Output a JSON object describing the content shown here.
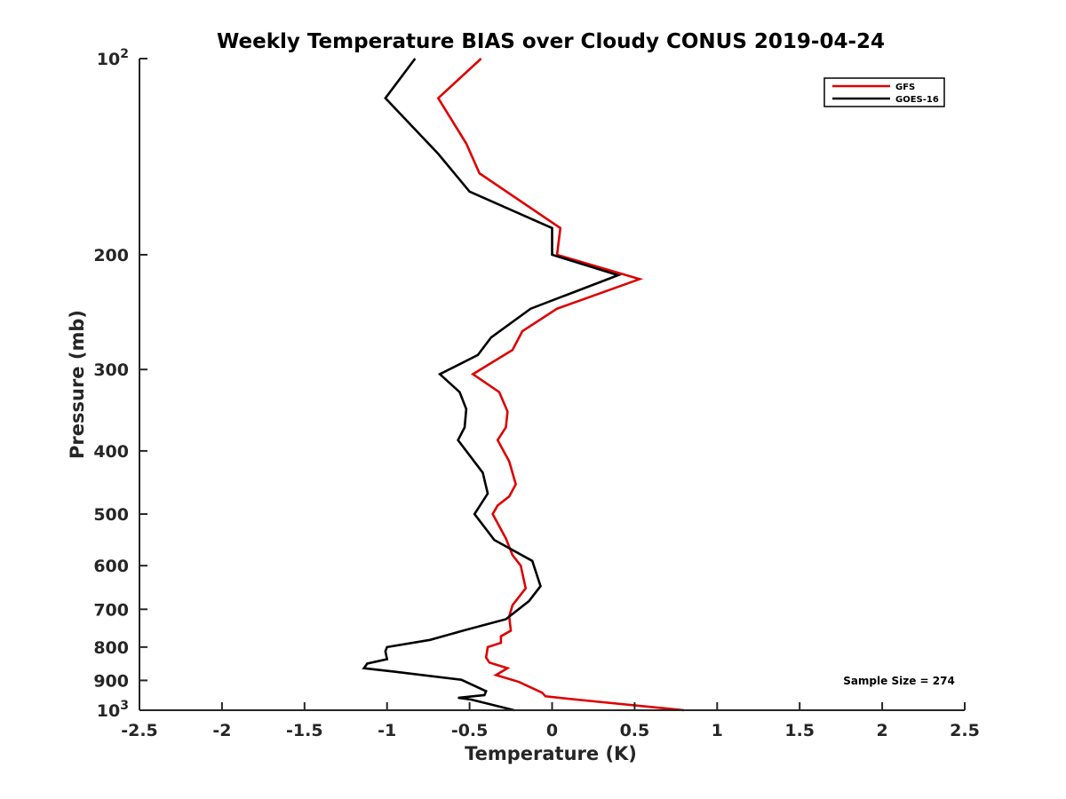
{
  "chart_data": {
    "type": "line",
    "title": "Weekly Temperature BIAS over Cloudy CONUS 2019-04-24",
    "xlabel": "Temperature (K)",
    "ylabel": "Pressure (mb)",
    "xlim": [
      -2.5,
      2.5
    ],
    "ylim": [
      1000,
      100
    ],
    "yscale": "log",
    "grid": false,
    "legend_position": "top-right",
    "x_ticks": [
      -2.5,
      -2,
      -1.5,
      -1,
      -0.5,
      0,
      0.5,
      1,
      1.5,
      2,
      2.5
    ],
    "x_tick_labels": [
      "-2.5",
      "-2",
      "-1.5",
      "-1",
      "-0.5",
      "0",
      "0.5",
      "1",
      "1.5",
      "2",
      "2.5"
    ],
    "y_ticks": [
      {
        "value": 100,
        "label": "10",
        "sup": "2"
      },
      {
        "value": 200,
        "label": "200",
        "sup": ""
      },
      {
        "value": 300,
        "label": "300",
        "sup": ""
      },
      {
        "value": 400,
        "label": "400",
        "sup": ""
      },
      {
        "value": 500,
        "label": "500",
        "sup": ""
      },
      {
        "value": 600,
        "label": "600",
        "sup": ""
      },
      {
        "value": 700,
        "label": "700",
        "sup": ""
      },
      {
        "value": 800,
        "label": "800",
        "sup": ""
      },
      {
        "value": 900,
        "label": "900",
        "sup": ""
      },
      {
        "value": 1000,
        "label": "10",
        "sup": "3"
      }
    ],
    "annotation": "Sample Size = 274",
    "series": [
      {
        "name": "GFS",
        "color": "#dd0000",
        "points": [
          [
            -0.43,
            100
          ],
          [
            -0.69,
            115
          ],
          [
            -0.52,
            135
          ],
          [
            -0.44,
            150
          ],
          [
            0.05,
            182
          ],
          [
            0.03,
            200
          ],
          [
            0.53,
            218
          ],
          [
            0.03,
            242
          ],
          [
            -0.18,
            262
          ],
          [
            -0.24,
            280
          ],
          [
            -0.48,
            305
          ],
          [
            -0.32,
            325
          ],
          [
            -0.27,
            348
          ],
          [
            -0.28,
            368
          ],
          [
            -0.33,
            385
          ],
          [
            -0.26,
            415
          ],
          [
            -0.22,
            450
          ],
          [
            -0.26,
            470
          ],
          [
            -0.33,
            485
          ],
          [
            -0.36,
            500
          ],
          [
            -0.28,
            545
          ],
          [
            -0.24,
            578
          ],
          [
            -0.19,
            600
          ],
          [
            -0.16,
            650
          ],
          [
            -0.24,
            690
          ],
          [
            -0.26,
            718
          ],
          [
            -0.25,
            755
          ],
          [
            -0.31,
            770
          ],
          [
            -0.31,
            788
          ],
          [
            -0.39,
            800
          ],
          [
            -0.4,
            830
          ],
          [
            -0.38,
            845
          ],
          [
            -0.27,
            862
          ],
          [
            -0.34,
            883
          ],
          [
            -0.2,
            905
          ],
          [
            -0.06,
            940
          ],
          [
            -0.04,
            952
          ],
          [
            0.18,
            965
          ],
          [
            0.8,
            1000
          ]
        ]
      },
      {
        "name": "GOES-16",
        "color": "#000000",
        "points": [
          [
            -0.83,
            100
          ],
          [
            -1.01,
            115
          ],
          [
            -0.69,
            140
          ],
          [
            -0.5,
            160
          ],
          [
            0.0,
            182
          ],
          [
            0.0,
            200
          ],
          [
            0.4,
            215
          ],
          [
            -0.13,
            242
          ],
          [
            -0.37,
            268
          ],
          [
            -0.45,
            285
          ],
          [
            -0.68,
            305
          ],
          [
            -0.56,
            325
          ],
          [
            -0.52,
            345
          ],
          [
            -0.53,
            368
          ],
          [
            -0.57,
            385
          ],
          [
            -0.42,
            432
          ],
          [
            -0.39,
            465
          ],
          [
            -0.47,
            500
          ],
          [
            -0.35,
            548
          ],
          [
            -0.12,
            590
          ],
          [
            -0.07,
            645
          ],
          [
            -0.14,
            680
          ],
          [
            -0.28,
            725
          ],
          [
            -0.54,
            755
          ],
          [
            -0.74,
            780
          ],
          [
            -1.0,
            800
          ],
          [
            -1.01,
            812
          ],
          [
            -1.0,
            835
          ],
          [
            -1.12,
            848
          ],
          [
            -1.14,
            862
          ],
          [
            -0.95,
            873
          ],
          [
            -0.55,
            898
          ],
          [
            -0.4,
            935
          ],
          [
            -0.41,
            948
          ],
          [
            -0.57,
            957
          ],
          [
            -0.49,
            963
          ],
          [
            -0.23,
            1000
          ]
        ]
      }
    ]
  }
}
